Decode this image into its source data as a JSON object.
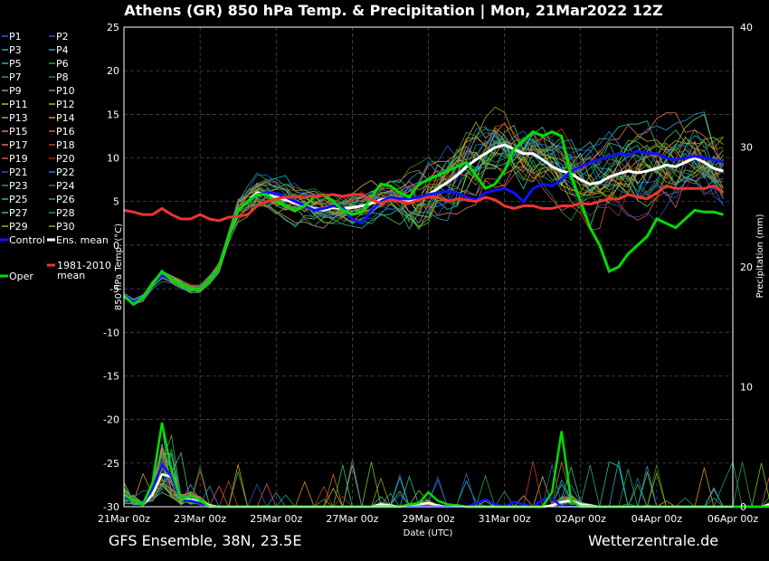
{
  "title": "Athens  (GR)  850 hPa Temp. & Precipitation | Mon, 21Mar2022 12Z",
  "footer": {
    "left": "GFS Ensemble, 38N, 23.5E",
    "right": "Wetterzentrale.de"
  },
  "colors": {
    "ens_mean": "#ffffff",
    "control": "#1111ff",
    "oper": "#00dd00",
    "climate": "#ee3333",
    "members": [
      "#1a66ff",
      "#2255cc",
      "#1ab0d0",
      "#22a0c8",
      "#20c0a0",
      "#20a060",
      "#30a040",
      "#1f9030",
      "#60c040",
      "#50b030",
      "#c0c020",
      "#d0a030",
      "#d0a040",
      "#e09020",
      "#d08850",
      "#c07030",
      "#e07060",
      "#c04020",
      "#e05050",
      "#a03010",
      "#3050c0",
      "#3080d0",
      "#2090c0",
      "#2070a0",
      "#30c090",
      "#30a080",
      "#40c060",
      "#20a050",
      "#80c020",
      "#a0a010"
    ]
  },
  "legend": {
    "members": [
      "P1",
      "P2",
      "P3",
      "P4",
      "P5",
      "P6",
      "P7",
      "P8",
      "P9",
      "P10",
      "P11",
      "P12",
      "P13",
      "P14",
      "P15",
      "P16",
      "P17",
      "P18",
      "P19",
      "P20",
      "P21",
      "P22",
      "P23",
      "P24",
      "P25",
      "P26",
      "P27",
      "P28",
      "P29",
      "P30"
    ],
    "control": "Control",
    "ens_mean": "Ens. mean",
    "oper": "Oper",
    "climate": "1981-2010 mean"
  },
  "chart_data": {
    "type": "line",
    "title": "Athens  (GR)  850 hPa Temp. & Precipitation | Mon, 21Mar2022 12Z",
    "xlabel": "Date (UTC)",
    "ylabel": "850 hPa Temp. (°C)",
    "y2label": "Precipitation (mm)",
    "x_ticks": [
      "21Mar 00z",
      "23Mar 00z",
      "25Mar 00z",
      "27Mar 00z",
      "29Mar 00z",
      "31Mar 00z",
      "02Apr 00z",
      "04Apr 00z",
      "06Apr 00z"
    ],
    "ylim": [
      -30,
      25
    ],
    "y_ticks": [
      25,
      20,
      15,
      10,
      5,
      0,
      -5,
      -10,
      -15,
      -20,
      -25,
      -30
    ],
    "y2lim": [
      0,
      40
    ],
    "y2_ticks": [
      40,
      30,
      20,
      10,
      0
    ],
    "x_range_hours": [
      0,
      384
    ],
    "step_hours": 6,
    "grid": true,
    "legend_position": "left",
    "temperature_series": [
      {
        "name": "Ens. mean",
        "values": [
          -5.8,
          -6.5,
          -6,
          -4.5,
          -3.5,
          -4,
          -4.5,
          -5,
          -5,
          -4,
          -2.5,
          1,
          4,
          5,
          6,
          5.8,
          5.5,
          5.2,
          4.8,
          4.5,
          4.2,
          4,
          4.3,
          4.2,
          4.3,
          4.5,
          4.8,
          5.2,
          5.3,
          5.1,
          5,
          5.2,
          5.8,
          6.5,
          7.2,
          8,
          9,
          9.8,
          10.5,
          11.2,
          11.5,
          11,
          10.5,
          10.5,
          9.8,
          9,
          8.5,
          8.2,
          7.5,
          7,
          7.2,
          7.8,
          8.2,
          8.5,
          8.3,
          8.5,
          8.8,
          9.2,
          9,
          9.5,
          10,
          9.5,
          8.8,
          8.5
        ]
      },
      {
        "name": "Control",
        "values": [
          -5.8,
          -6.5,
          -6,
          -4.5,
          -3.5,
          -4,
          -4.5,
          -5,
          -5,
          -4,
          -2.5,
          1,
          4,
          5,
          5.8,
          6,
          6,
          5.5,
          5,
          4.5,
          4,
          4.2,
          4.5,
          4.3,
          3,
          2.5,
          4,
          5,
          5.5,
          5.3,
          5.3,
          5.5,
          5.8,
          6,
          6.2,
          6,
          5.5,
          5.2,
          6,
          6.3,
          6.5,
          6,
          5,
          6.5,
          7,
          6.8,
          7.5,
          8.5,
          9,
          9.5,
          9.8,
          10.2,
          10.5,
          10.3,
          10.8,
          10.5,
          10.5,
          10,
          9.8,
          10,
          10.2,
          10,
          9.8,
          9.5
        ]
      },
      {
        "name": "Oper",
        "values": [
          -5.8,
          -6.8,
          -6,
          -4.5,
          -3,
          -4,
          -4.5,
          -5,
          -5,
          -4,
          -2.5,
          1,
          4,
          5,
          5.8,
          5.8,
          5,
          4.5,
          4,
          4.5,
          5.5,
          5.8,
          5,
          4,
          3.5,
          3.8,
          5.5,
          7,
          6.8,
          6,
          5.5,
          7,
          7.5,
          8,
          8.5,
          9,
          9.5,
          8,
          6.5,
          7,
          8.5,
          11,
          12,
          13,
          12.5,
          13,
          12.5,
          8,
          5,
          2,
          0,
          -3,
          -2.5,
          -1,
          0,
          1,
          3,
          2.5,
          2,
          3,
          4,
          3.8,
          3.8,
          3.5
        ]
      },
      {
        "name": "1981-2010 mean",
        "values": [
          4,
          3.8,
          3.5,
          3.5,
          4.2,
          3.5,
          3,
          3,
          3.5,
          3,
          2.8,
          3.2,
          3.3,
          3.5,
          4.5,
          5,
          5.3,
          5.5,
          5.5,
          5.5,
          5.6,
          5.7,
          5.8,
          5.6,
          5.8,
          5.8,
          5.2,
          4.8,
          5.2,
          5,
          4.8,
          5.2,
          5.5,
          5.5,
          5,
          5.3,
          5.2,
          5,
          5.5,
          5.2,
          4.5,
          4.2,
          4.5,
          4.5,
          4.2,
          4.2,
          4.5,
          4.5,
          4.8,
          4.7,
          5,
          5.3,
          5.3,
          5.8,
          5.5,
          5.3,
          6,
          6.8,
          6.5,
          6.5,
          6.5,
          6.5,
          6.8,
          6
        ]
      }
    ],
    "precipitation_series": [
      {
        "name": "Ens. mean",
        "values": [
          0.8,
          0.5,
          0.2,
          1,
          2.7,
          2.5,
          0.5,
          0.6,
          0.4,
          0.1,
          0,
          0,
          0,
          0,
          0,
          0,
          0,
          0,
          0,
          0,
          0,
          0,
          0,
          0,
          0,
          0,
          0,
          0.2,
          0.1,
          0,
          0.1,
          0.2,
          0.3,
          0.1,
          0,
          0.1,
          0,
          0,
          0,
          0,
          0,
          0,
          0,
          0,
          0,
          0.1,
          0.4,
          0.5,
          0.2,
          0.1,
          0,
          0,
          0,
          0,
          0,
          0,
          0,
          0,
          0,
          0,
          0,
          0,
          0,
          0,
          0,
          0,
          0,
          0,
          0.2,
          0,
          0,
          0,
          0
        ]
      },
      {
        "name": "Control",
        "values": [
          0.8,
          0.5,
          0.2,
          1.5,
          3.5,
          2.5,
          0.5,
          0.5,
          0.3,
          0,
          0,
          0,
          0,
          0,
          0,
          0,
          0,
          0,
          0,
          0,
          0,
          0,
          0,
          0,
          0,
          0,
          0,
          0,
          0,
          0,
          0,
          0,
          0,
          0,
          0,
          0,
          0,
          0.3,
          0.6,
          0.2,
          0,
          0.4,
          0.2,
          0,
          0.6,
          0.7,
          0,
          0,
          0,
          0,
          0,
          0,
          0,
          0,
          0,
          0,
          0,
          0,
          0,
          0,
          0,
          0,
          0,
          0,
          0,
          0,
          0,
          0,
          0,
          0,
          0,
          0,
          0
        ]
      },
      {
        "name": "Oper",
        "values": [
          1,
          0.5,
          0.2,
          2,
          7,
          3,
          0.5,
          1,
          0.5,
          0,
          0,
          0,
          0,
          0,
          0,
          0,
          0,
          0,
          0,
          0,
          0,
          0,
          0,
          0,
          0,
          0,
          0,
          0,
          0,
          0,
          0.2,
          0.3,
          1.2,
          0.5,
          0.2,
          0.1,
          0,
          0,
          0,
          0,
          0,
          0,
          0,
          0,
          0,
          1.2,
          6.3,
          0.5,
          0,
          0,
          0,
          0,
          0,
          0,
          0,
          0,
          0,
          0,
          0,
          0,
          0,
          0,
          0,
          0,
          0,
          0,
          0,
          0,
          0,
          0,
          0,
          0,
          0,
          0
        ]
      }
    ]
  }
}
